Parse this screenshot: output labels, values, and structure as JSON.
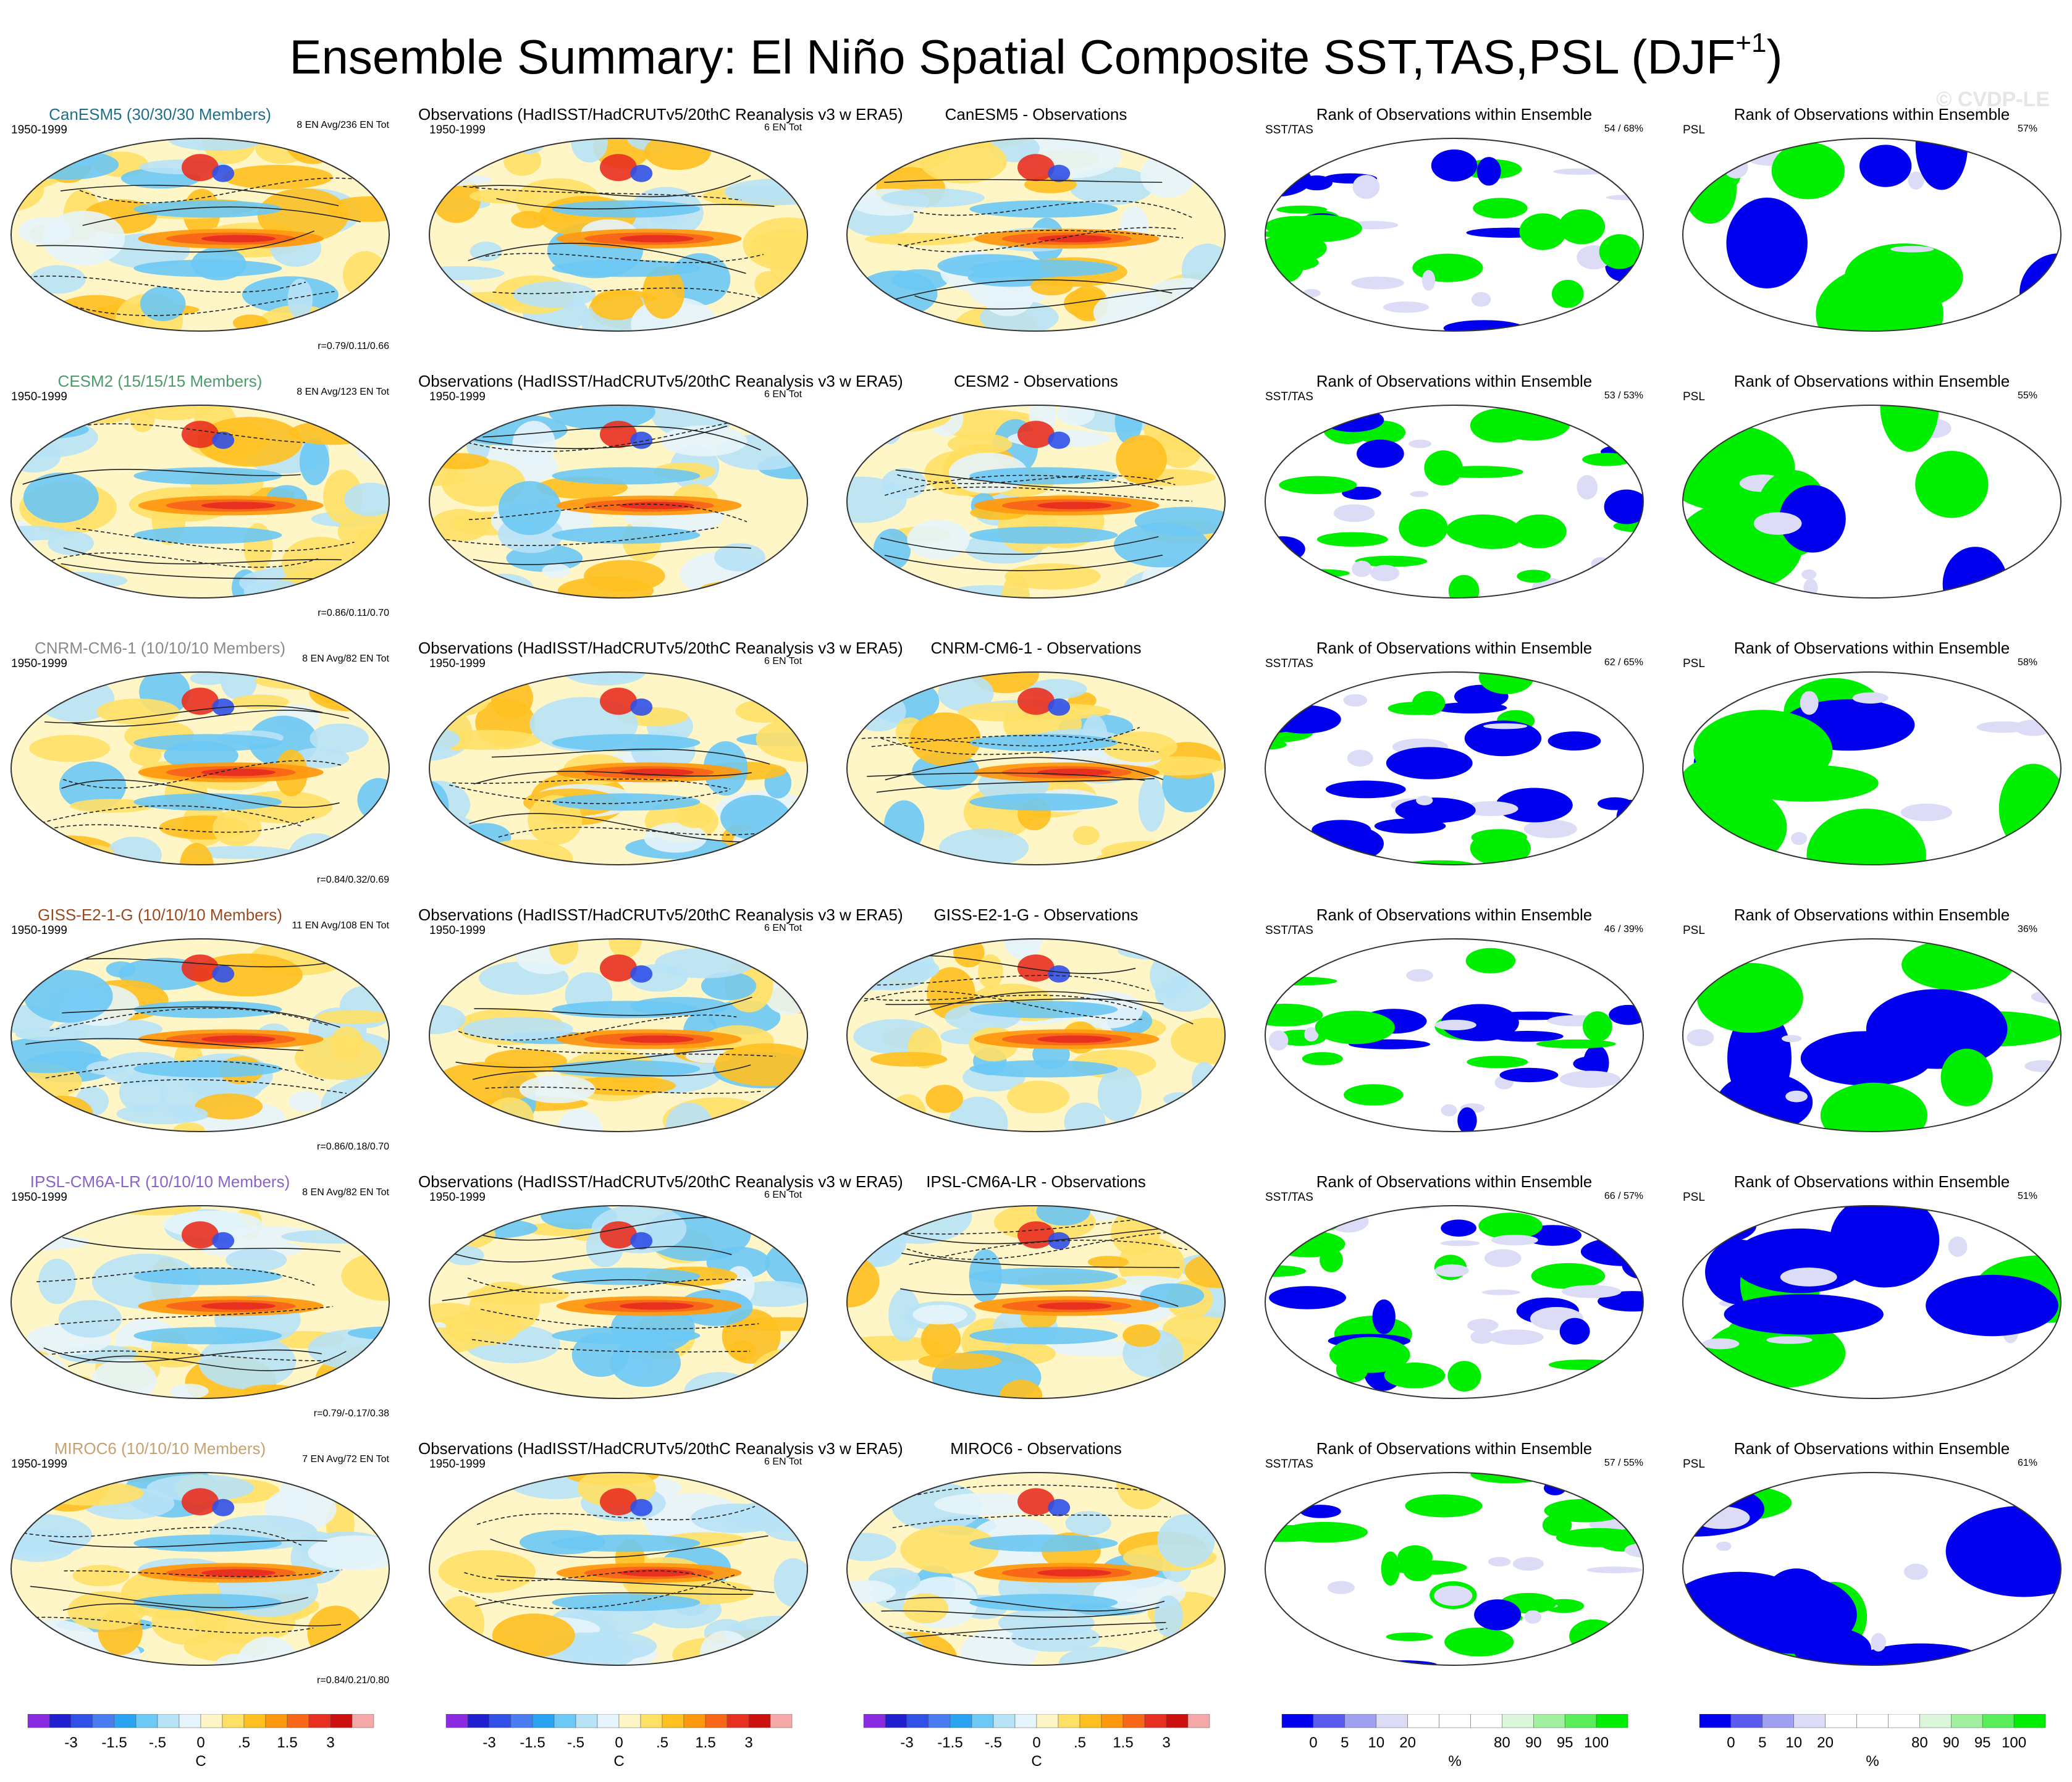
{
  "title_main": "Ensemble Summary: El Niño Spatial Composite SST,TAS,PSL (DJF",
  "title_sup": "+1",
  "title_close": ")",
  "watermark": "© CVDP-LE",
  "colors": {
    "model_canesm5": "#1f6f8b",
    "model_cesm2": "#4d9a6a",
    "model_cnrm": "#8a8a8a",
    "model_giss": "#9a4a1e",
    "model_ipsl": "#8a62c8",
    "model_miroc6": "#c8a070",
    "rank_low": "#0000ee",
    "rank_high": "#00ee00"
  },
  "column_headers": {
    "obs": "Observations (HadISST/HadCRUTv5/20thC Reanalysis v3 w ERA5)",
    "rank": "Rank of Observations within Ensemble",
    "period": "1950-1999",
    "obs_count": "6 EN Tot",
    "sst_label": "SST/TAS",
    "psl_label": "PSL"
  },
  "chart_data": [
    {
      "type": "heatmap",
      "model": "CanESM5",
      "title": "CanESM5 (30/30/30 Members)",
      "diff_title": "CanESM5 - Observations",
      "en_info": "8 EN Avg/236 EN Tot",
      "corr": "r=0.79/0.11/0.66",
      "rank_sst": "54 /  68%",
      "rank_psl": "57%"
    },
    {
      "type": "heatmap",
      "model": "CESM2",
      "title": "CESM2 (15/15/15 Members)",
      "diff_title": "CESM2 - Observations",
      "en_info": "8 EN Avg/123 EN Tot",
      "corr": "r=0.86/0.11/0.70",
      "rank_sst": "53 /  53%",
      "rank_psl": "55%"
    },
    {
      "type": "heatmap",
      "model": "CNRM-CM6-1",
      "title": "CNRM-CM6-1 (10/10/10 Members)",
      "diff_title": "CNRM-CM6-1 - Observations",
      "en_info": "8 EN Avg/82 EN Tot",
      "corr": "r=0.84/0.32/0.69",
      "rank_sst": "62 /  65%",
      "rank_psl": "58%"
    },
    {
      "type": "heatmap",
      "model": "GISS-E2-1-G",
      "title": "GISS-E2-1-G (10/10/10 Members)",
      "diff_title": "GISS-E2-1-G - Observations",
      "en_info": "11 EN Avg/108 EN Tot",
      "corr": "r=0.86/0.18/0.70",
      "rank_sst": "46 /  39%",
      "rank_psl": "36%"
    },
    {
      "type": "heatmap",
      "model": "IPSL-CM6A-LR",
      "title": "IPSL-CM6A-LR (10/10/10 Members)",
      "diff_title": "IPSL-CM6A-LR - Observations",
      "en_info": "8 EN Avg/82 EN Tot",
      "corr": "r=0.79/-0.17/0.38",
      "rank_sst": "66 /  57%",
      "rank_psl": "51%"
    },
    {
      "type": "heatmap",
      "model": "MIROC6",
      "title": "MIROC6 (10/10/10 Members)",
      "diff_title": "MIROC6 - Observations",
      "en_info": "7 EN Avg/72 EN Tot",
      "corr": "r=0.84/0.21/0.80",
      "rank_sst": "57 /  55%",
      "rank_psl": "61%"
    }
  ],
  "colorbars": {
    "sst": {
      "ticks": [
        "-3",
        "-1.5",
        "-.5",
        "0",
        ".5",
        "1.5",
        "3"
      ],
      "unit": "C",
      "colors": [
        "#8a2be2",
        "#2020d0",
        "#3050e8",
        "#4a7ef0",
        "#2aa4f0",
        "#6cc8f4",
        "#b8e2f6",
        "#e6f4fb",
        "#fff6c8",
        "#ffe066",
        "#ffc020",
        "#ff9a10",
        "#f86818",
        "#e83020",
        "#cc1010",
        "#f5a8a8"
      ]
    },
    "rank": {
      "ticks": [
        "0",
        "5",
        "10",
        "20",
        "80",
        "90",
        "95",
        "100"
      ],
      "unit": "%",
      "colors": [
        "#0000ee",
        "#5a5aee",
        "#a0a0f0",
        "#dcdcf6",
        "#ffffff",
        "#ffffff",
        "#ffffff",
        "#dcf6dc",
        "#a0f0a0",
        "#5aee5a",
        "#00ee00"
      ]
    }
  }
}
